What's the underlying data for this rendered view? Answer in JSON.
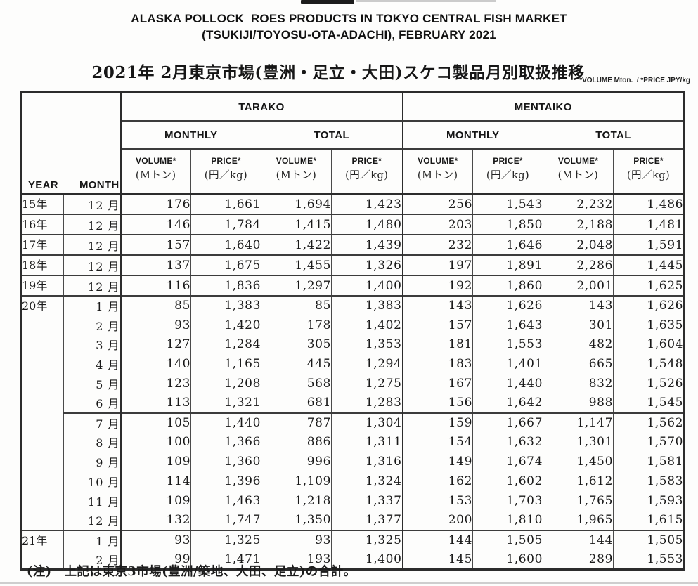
{
  "page": {
    "title_en_1": "ALASKA POLLOCK  ROES PRODUCTS IN TOKYO CENTRAL FISH MARKET",
    "title_en_2": "(TSUKIJI/TOYOSU-OTA-ADACHI), FEBRUARY 2021",
    "title_jp": "2021年 2月東京市場(豊洲・足立・大田)スケコ製品月別取扱推移",
    "units_note": "*VOLUME Mton.  / *PRICE JPY/kg",
    "footnote": "(注)　上記は東京3市場(豊洲/築地、大田、足立)の合計。"
  },
  "table": {
    "corner": {
      "year": "YEAR",
      "month": "MONTH"
    },
    "groups": [
      "TARAKO",
      "MENTAIKO"
    ],
    "subgroups": [
      "MONTHLY",
      "TOTAL"
    ],
    "measures": {
      "volume": "VOLUME*",
      "price": "PRICE*",
      "volume_unit": "(Mトン)",
      "price_unit": "(円／kg)"
    },
    "rows": [
      {
        "year": "15年",
        "span": 1,
        "month": "12 月",
        "line": false,
        "values": [
          "176",
          "1,661",
          "1,694",
          "1,423",
          "256",
          "1,543",
          "2,232",
          "1,486"
        ]
      },
      {
        "year": "16年",
        "span": 1,
        "month": "12 月",
        "line": true,
        "values": [
          "146",
          "1,784",
          "1,415",
          "1,480",
          "203",
          "1,850",
          "2,188",
          "1,481"
        ]
      },
      {
        "year": "17年",
        "span": 1,
        "month": "12 月",
        "line": true,
        "values": [
          "157",
          "1,640",
          "1,422",
          "1,439",
          "232",
          "1,646",
          "2,048",
          "1,591"
        ]
      },
      {
        "year": "18年",
        "span": 1,
        "month": "12 月",
        "line": true,
        "values": [
          "137",
          "1,675",
          "1,455",
          "1,326",
          "197",
          "1,891",
          "2,286",
          "1,445"
        ]
      },
      {
        "year": "19年",
        "span": 1,
        "month": "12 月",
        "line": true,
        "values": [
          "116",
          "1,836",
          "1,297",
          "1,400",
          "192",
          "1,860",
          "2,001",
          "1,625"
        ]
      },
      {
        "year": "20年",
        "span": 12,
        "month": "1 月",
        "line": true,
        "values": [
          "85",
          "1,383",
          "85",
          "1,383",
          "143",
          "1,626",
          "143",
          "1,626"
        ]
      },
      {
        "year": "",
        "span": 1,
        "month": "2 月",
        "line": false,
        "values": [
          "93",
          "1,420",
          "178",
          "1,402",
          "157",
          "1,643",
          "301",
          "1,635"
        ]
      },
      {
        "year": "",
        "span": 1,
        "month": "3 月",
        "line": false,
        "values": [
          "127",
          "1,284",
          "305",
          "1,353",
          "181",
          "1,553",
          "482",
          "1,604"
        ]
      },
      {
        "year": "",
        "span": 1,
        "month": "4 月",
        "line": false,
        "values": [
          "140",
          "1,165",
          "445",
          "1,294",
          "183",
          "1,401",
          "665",
          "1,548"
        ]
      },
      {
        "year": "",
        "span": 1,
        "month": "5 月",
        "line": false,
        "values": [
          "123",
          "1,208",
          "568",
          "1,275",
          "167",
          "1,440",
          "832",
          "1,526"
        ]
      },
      {
        "year": "",
        "span": 1,
        "month": "6 月",
        "line": false,
        "values": [
          "113",
          "1,321",
          "681",
          "1,283",
          "156",
          "1,642",
          "988",
          "1,545"
        ]
      },
      {
        "year": "",
        "span": 1,
        "month": "7 月",
        "line": true,
        "values": [
          "105",
          "1,440",
          "787",
          "1,304",
          "159",
          "1,667",
          "1,147",
          "1,562"
        ]
      },
      {
        "year": "",
        "span": 1,
        "month": "8 月",
        "line": false,
        "values": [
          "100",
          "1,366",
          "886",
          "1,311",
          "154",
          "1,632",
          "1,301",
          "1,570"
        ]
      },
      {
        "year": "",
        "span": 1,
        "month": "9 月",
        "line": false,
        "values": [
          "109",
          "1,360",
          "996",
          "1,316",
          "149",
          "1,674",
          "1,450",
          "1,581"
        ]
      },
      {
        "year": "",
        "span": 1,
        "month": "10 月",
        "line": false,
        "values": [
          "114",
          "1,396",
          "1,109",
          "1,324",
          "162",
          "1,602",
          "1,612",
          "1,583"
        ]
      },
      {
        "year": "",
        "span": 1,
        "month": "11 月",
        "line": false,
        "values": [
          "109",
          "1,463",
          "1,218",
          "1,337",
          "153",
          "1,703",
          "1,765",
          "1,593"
        ]
      },
      {
        "year": "",
        "span": 1,
        "month": "12 月",
        "line": false,
        "values": [
          "132",
          "1,747",
          "1,350",
          "1,377",
          "200",
          "1,810",
          "1,965",
          "1,615"
        ]
      },
      {
        "year": "21年",
        "span": 2,
        "month": "1 月",
        "line": true,
        "values": [
          "93",
          "1,325",
          "93",
          "1,325",
          "144",
          "1,505",
          "144",
          "1,505"
        ]
      },
      {
        "year": "",
        "span": 1,
        "month": "2 月",
        "line": false,
        "values": [
          "99",
          "1,471",
          "193",
          "1,400",
          "145",
          "1,600",
          "289",
          "1,553"
        ]
      }
    ]
  }
}
